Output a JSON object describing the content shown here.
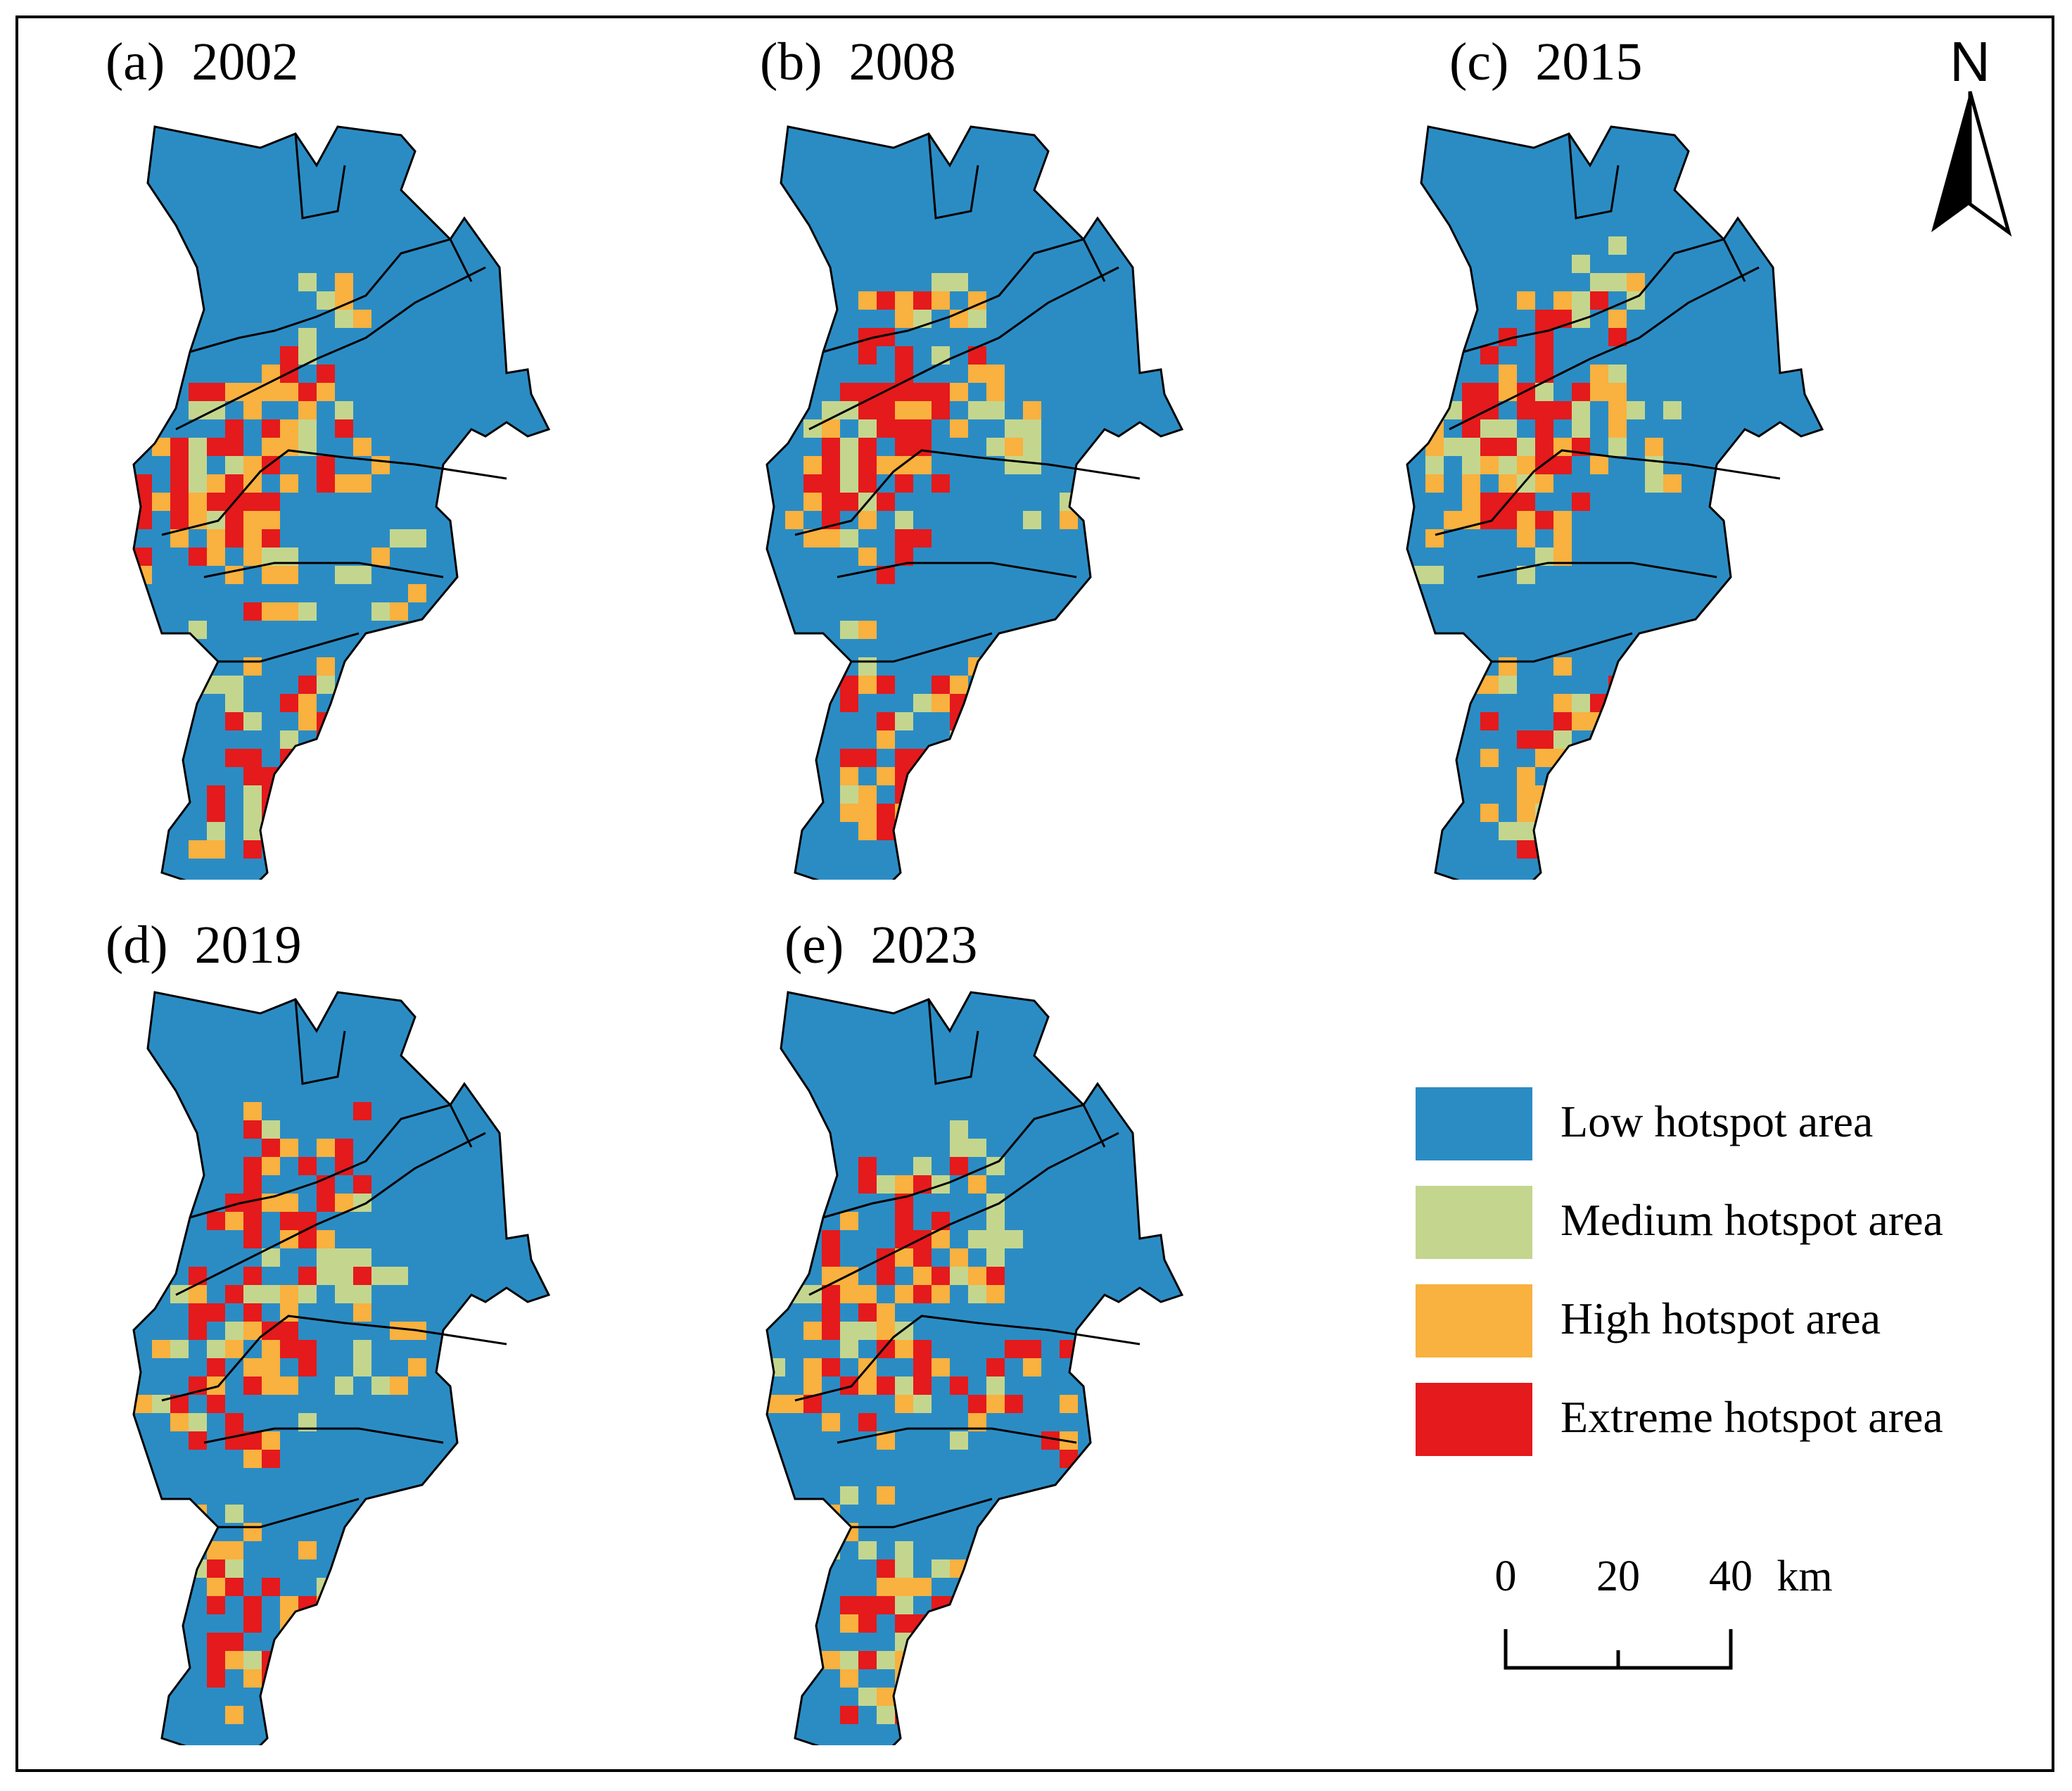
{
  "figure": {
    "panels": [
      {
        "label": "(a)",
        "year": "2002",
        "hotspots": [
          [
            0.45,
            0.21,
            1
          ],
          [
            0.38,
            0.32,
            2
          ],
          [
            0.3,
            0.38,
            3
          ],
          [
            0.22,
            0.48,
            3
          ],
          [
            0.12,
            0.52,
            3
          ],
          [
            0.26,
            0.53,
            2
          ],
          [
            0.35,
            0.6,
            2
          ],
          [
            0.58,
            0.58,
            1
          ],
          [
            0.3,
            0.82,
            3
          ],
          [
            0.4,
            0.86,
            3
          ],
          [
            0.22,
            0.9,
            2
          ],
          [
            0.18,
            0.7,
            1
          ],
          [
            0.42,
            0.75,
            2
          ],
          [
            0.25,
            0.42,
            3
          ],
          [
            0.48,
            0.4,
            2
          ],
          [
            0.15,
            0.45,
            1
          ]
        ]
      },
      {
        "label": "(b)",
        "year": "2008",
        "hotspots": [
          [
            0.45,
            0.22,
            1
          ],
          [
            0.34,
            0.3,
            3
          ],
          [
            0.28,
            0.37,
            3
          ],
          [
            0.2,
            0.46,
            3
          ],
          [
            0.12,
            0.5,
            2
          ],
          [
            0.26,
            0.54,
            2
          ],
          [
            0.55,
            0.35,
            1
          ],
          [
            0.6,
            0.46,
            1
          ],
          [
            0.3,
            0.8,
            3
          ],
          [
            0.38,
            0.85,
            3
          ],
          [
            0.22,
            0.88,
            2
          ],
          [
            0.16,
            0.68,
            2
          ],
          [
            0.4,
            0.72,
            1
          ],
          [
            0.28,
            0.42,
            3
          ],
          [
            0.46,
            0.34,
            2
          ],
          [
            0.14,
            0.4,
            1
          ]
        ]
      },
      {
        "label": "(c)",
        "year": "2015",
        "hotspots": [
          [
            0.42,
            0.2,
            1
          ],
          [
            0.36,
            0.3,
            3
          ],
          [
            0.28,
            0.36,
            3
          ],
          [
            0.18,
            0.46,
            3
          ],
          [
            0.1,
            0.52,
            2
          ],
          [
            0.26,
            0.54,
            2
          ],
          [
            0.5,
            0.4,
            1
          ],
          [
            0.3,
            0.82,
            3
          ],
          [
            0.38,
            0.86,
            3
          ],
          [
            0.24,
            0.9,
            2
          ],
          [
            0.16,
            0.72,
            2
          ],
          [
            0.4,
            0.74,
            2
          ],
          [
            0.26,
            0.44,
            3
          ],
          [
            0.46,
            0.36,
            2
          ],
          [
            0.14,
            0.42,
            1
          ]
        ]
      },
      {
        "label": "(d)",
        "year": "2019",
        "hotspots": [
          [
            0.4,
            0.22,
            3
          ],
          [
            0.36,
            0.3,
            3
          ],
          [
            0.28,
            0.36,
            3
          ],
          [
            0.2,
            0.46,
            2
          ],
          [
            0.1,
            0.52,
            2
          ],
          [
            0.26,
            0.54,
            3
          ],
          [
            0.52,
            0.36,
            1
          ],
          [
            0.56,
            0.48,
            1
          ],
          [
            0.3,
            0.82,
            3
          ],
          [
            0.38,
            0.86,
            3
          ],
          [
            0.24,
            0.9,
            2
          ],
          [
            0.18,
            0.7,
            2
          ],
          [
            0.4,
            0.76,
            2
          ],
          [
            0.28,
            0.44,
            3
          ],
          [
            0.46,
            0.36,
            2
          ],
          [
            0.14,
            0.44,
            1
          ]
        ]
      },
      {
        "label": "(e)",
        "year": "2023",
        "hotspots": [
          [
            0.44,
            0.21,
            1
          ],
          [
            0.34,
            0.3,
            3
          ],
          [
            0.28,
            0.36,
            3
          ],
          [
            0.2,
            0.46,
            3
          ],
          [
            0.1,
            0.52,
            2
          ],
          [
            0.26,
            0.54,
            2
          ],
          [
            0.5,
            0.34,
            1
          ],
          [
            0.58,
            0.52,
            3
          ],
          [
            0.3,
            0.82,
            3
          ],
          [
            0.38,
            0.86,
            3
          ],
          [
            0.22,
            0.9,
            2
          ],
          [
            0.16,
            0.7,
            2
          ],
          [
            0.4,
            0.76,
            1
          ],
          [
            0.28,
            0.44,
            3
          ],
          [
            0.46,
            0.36,
            2
          ],
          [
            0.14,
            0.4,
            1
          ]
        ]
      }
    ]
  },
  "legend": {
    "items": [
      {
        "label": "Low hotspot area",
        "color": "#2b8cc4"
      },
      {
        "label": "Medium hotspot area",
        "color": "#c4d68e"
      },
      {
        "label": "High hotspot area",
        "color": "#f9b13f"
      },
      {
        "label": "Extreme hotspot area",
        "color": "#e41a1c"
      }
    ]
  },
  "north_arrow": {
    "label": "N"
  },
  "scale_bar": {
    "ticks": [
      "0",
      "20",
      "40"
    ],
    "unit": "km"
  },
  "colors": {
    "low": "#2b8cc4",
    "medium": "#c4d68e",
    "high": "#f9b13f",
    "extreme": "#e41a1c",
    "boundary": "#000000"
  }
}
